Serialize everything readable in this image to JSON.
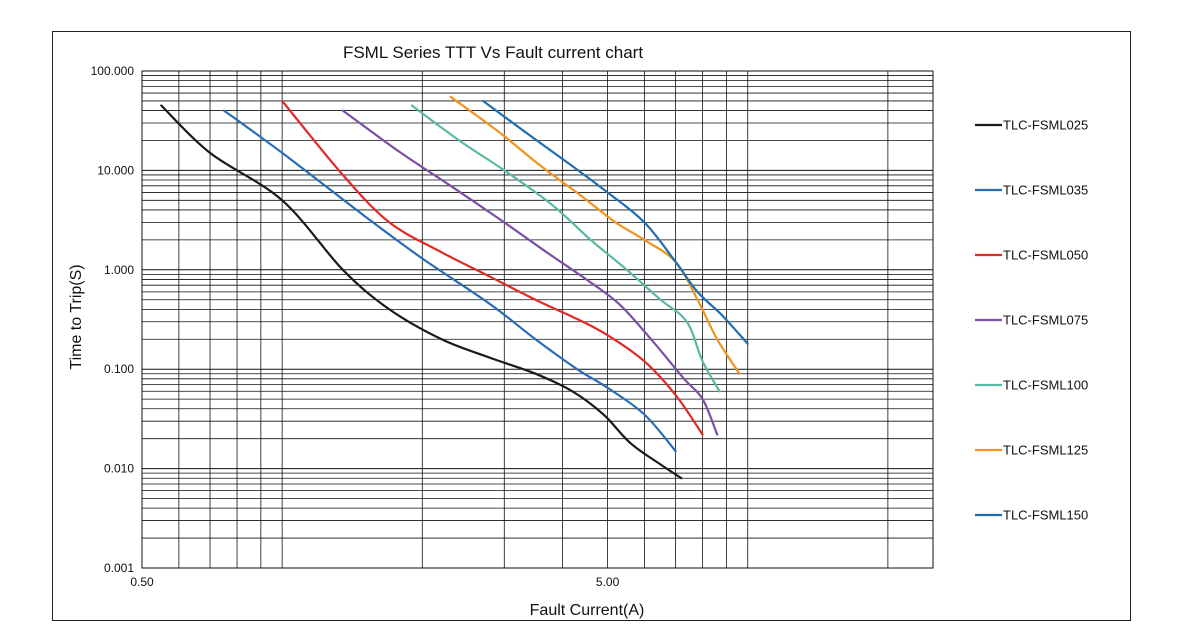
{
  "chart_data": {
    "type": "line",
    "title": "FSML Series TTT Vs Fault current chart",
    "xlabel": "Fault Current(A)",
    "ylabel": "Time to Trip(S)",
    "x_scale": "log",
    "y_scale": "log",
    "xlim": [
      0.5,
      25
    ],
    "ylim": [
      0.001,
      100
    ],
    "x_ticks": [
      0.5,
      5
    ],
    "x_tick_labels": [
      "0.50",
      "5.00"
    ],
    "y_ticks": [
      100,
      10,
      1,
      0.1,
      0.01,
      0.001
    ],
    "y_tick_labels": [
      "100.000",
      "10.000",
      "1.000",
      "0.100",
      "0.010",
      "0.001"
    ],
    "grid": true,
    "legend_position": "right",
    "series": [
      {
        "name": "TLC-FSML025",
        "color": "#1a1a1a",
        "x": [
          0.55,
          0.7,
          1.0,
          1.35,
          1.7,
          2.2,
          2.8,
          3.5,
          4.2,
          4.9,
          5.6,
          6.5,
          7.2
        ],
        "y": [
          45,
          15,
          5.0,
          1.0,
          0.4,
          0.2,
          0.13,
          0.09,
          0.06,
          0.035,
          0.018,
          0.011,
          0.008
        ]
      },
      {
        "name": "TLC-FSML035",
        "color": "#2a6db5",
        "x": [
          0.75,
          1.0,
          1.5,
          2.0,
          2.8,
          3.5,
          4.3,
          5.0,
          6.0,
          7.0
        ],
        "y": [
          40,
          15,
          3.5,
          1.3,
          0.45,
          0.2,
          0.1,
          0.065,
          0.035,
          0.015
        ]
      },
      {
        "name": "TLC-FSML050",
        "color": "#e02a26",
        "x": [
          1.0,
          1.35,
          1.7,
          2.2,
          2.8,
          3.5,
          4.3,
          5.0,
          6.0,
          7.0,
          8.0
        ],
        "y": [
          50,
          9.0,
          3.0,
          1.5,
          0.85,
          0.5,
          0.32,
          0.22,
          0.12,
          0.055,
          0.022
        ]
      },
      {
        "name": "TLC-FSML075",
        "color": "#7b4fa6",
        "x": [
          1.35,
          1.8,
          2.3,
          3.0,
          3.7,
          4.5,
          5.3,
          6.2,
          7.3,
          8.0,
          8.6
        ],
        "y": [
          40,
          15,
          7.0,
          3.0,
          1.5,
          0.8,
          0.45,
          0.2,
          0.08,
          0.05,
          0.022
        ]
      },
      {
        "name": "TLC-FSML100",
        "color": "#5bb8a6",
        "x": [
          1.9,
          2.4,
          3.0,
          3.8,
          4.6,
          5.5,
          6.5,
          7.4,
          8.0,
          8.7
        ],
        "y": [
          45,
          20,
          10,
          4.5,
          2.0,
          1.0,
          0.5,
          0.3,
          0.12,
          0.06
        ]
      },
      {
        "name": "TLC-FSML125",
        "color": "#f0951f",
        "x": [
          2.3,
          2.9,
          3.6,
          4.4,
          5.2,
          6.0,
          7.0,
          7.8,
          8.6,
          9.6
        ],
        "y": [
          55,
          25,
          11,
          5.5,
          3.0,
          2.0,
          1.2,
          0.5,
          0.2,
          0.09
        ]
      },
      {
        "name": "TLC-FSML150",
        "color": "#1f6fb0",
        "x": [
          2.7,
          3.3,
          4.1,
          5.0,
          6.0,
          7.0,
          7.8,
          8.8,
          10.0
        ],
        "y": [
          50,
          25,
          12,
          6.0,
          3.0,
          1.2,
          0.6,
          0.35,
          0.18
        ]
      }
    ]
  }
}
